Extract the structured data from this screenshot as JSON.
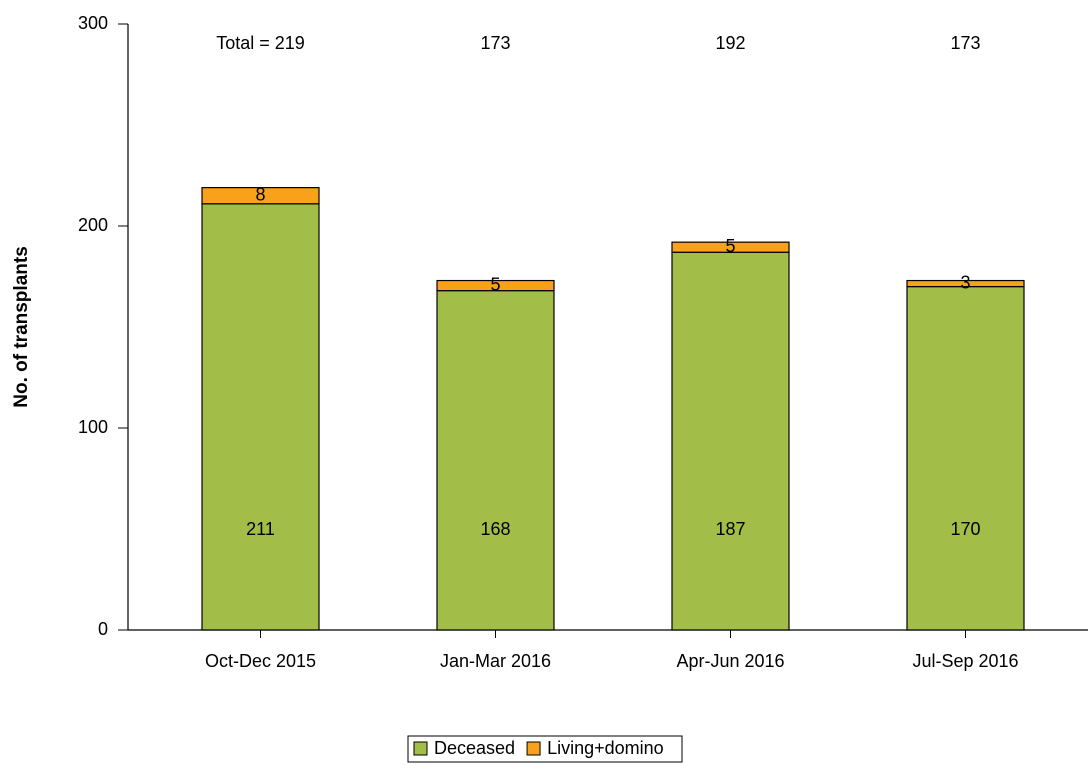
{
  "chart_data": {
    "type": "stacked_bar",
    "y_label": "No. of transplants",
    "categories": [
      "Oct-Dec 2015",
      "Jan-Mar 2016",
      "Apr-Jun 2016",
      "Jul-Sep 2016"
    ],
    "series": [
      {
        "name": "Deceased",
        "color": "#a2bd48",
        "values": [
          211,
          168,
          187,
          170
        ]
      },
      {
        "name": "Living+domino",
        "color": "#f9a11b",
        "values": [
          8,
          5,
          5,
          3
        ]
      }
    ],
    "totals": [
      "Total = 219",
      "173",
      "192",
      "173"
    ],
    "ylim": [
      0,
      300
    ],
    "yticks": [
      0,
      100,
      200,
      300
    ],
    "legend": "bottom"
  }
}
